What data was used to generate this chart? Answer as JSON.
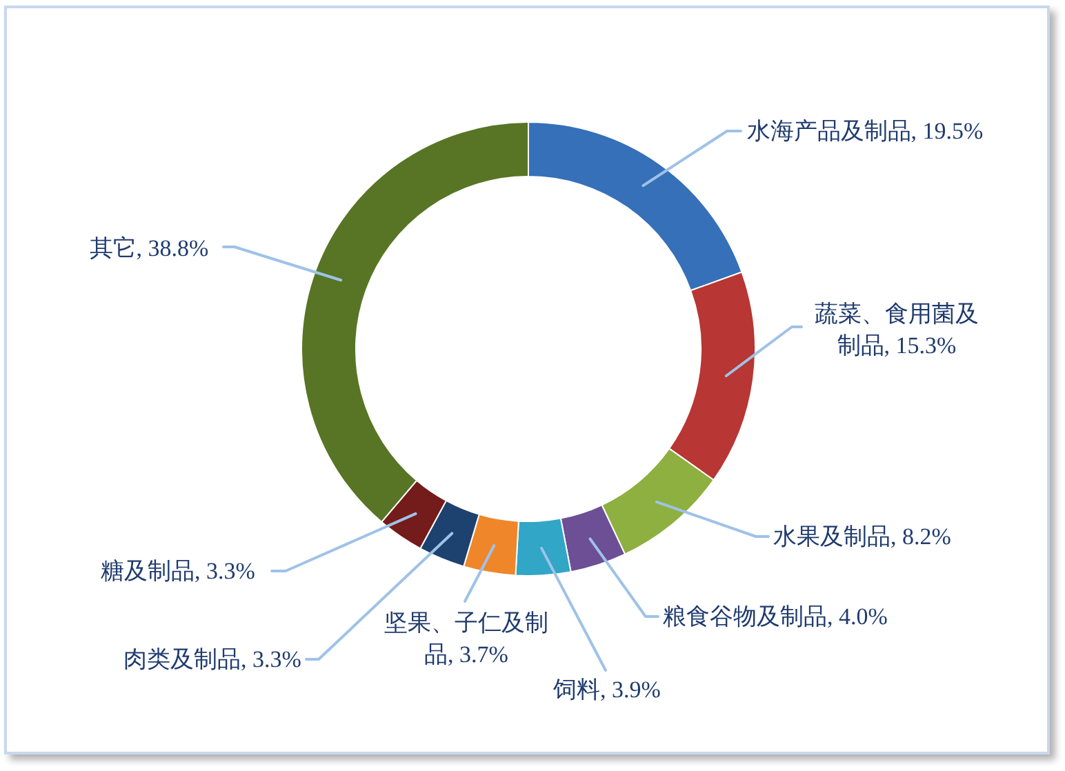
{
  "chart_data": {
    "type": "donut",
    "categories": [
      "水海产品及制品",
      "蔬菜、食用菌及制品",
      "水果及制品",
      "粮食谷物及制品",
      "饲料",
      "坚果、子仁及制品",
      "肉类及制品",
      "糖及制品",
      "其它"
    ],
    "values": [
      19.5,
      15.3,
      8.2,
      4.0,
      3.9,
      3.7,
      3.3,
      3.3,
      38.8
    ],
    "colors": [
      "#3570b8",
      "#b83633",
      "#8db040",
      "#6c4f95",
      "#31a6c6",
      "#ef862a",
      "#1d426f",
      "#741c1b",
      "#577524"
    ],
    "value_labels": [
      "19.5%",
      "15.3%",
      "8.2%",
      "4.0%",
      "3.9%",
      "3.7%",
      "3.3%",
      "3.3%",
      "38.8%"
    ]
  }
}
